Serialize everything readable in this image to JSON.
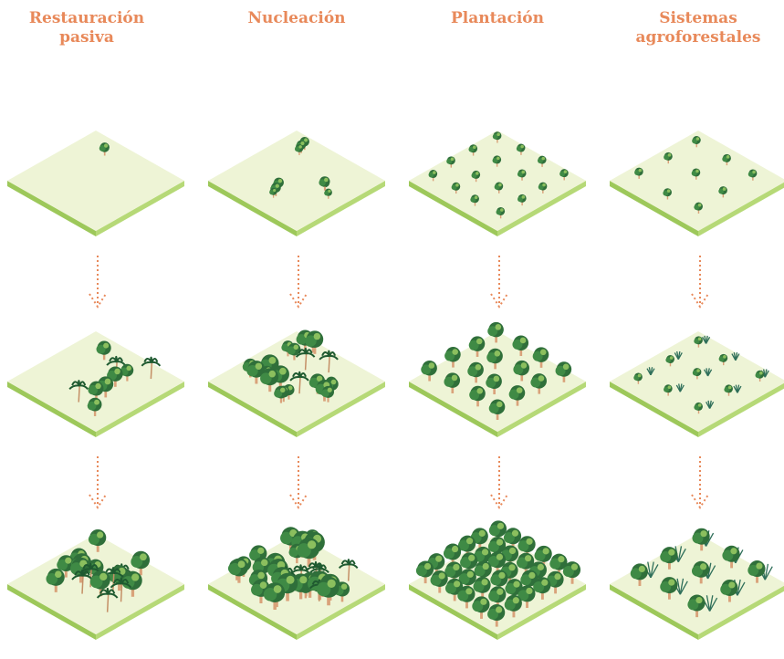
{
  "columns": [
    {
      "title": "Restauración pasiva"
    },
    {
      "title": "Nucleación"
    },
    {
      "title": "Plantación"
    },
    {
      "title": "Sistemas agroforestales"
    }
  ]
}
